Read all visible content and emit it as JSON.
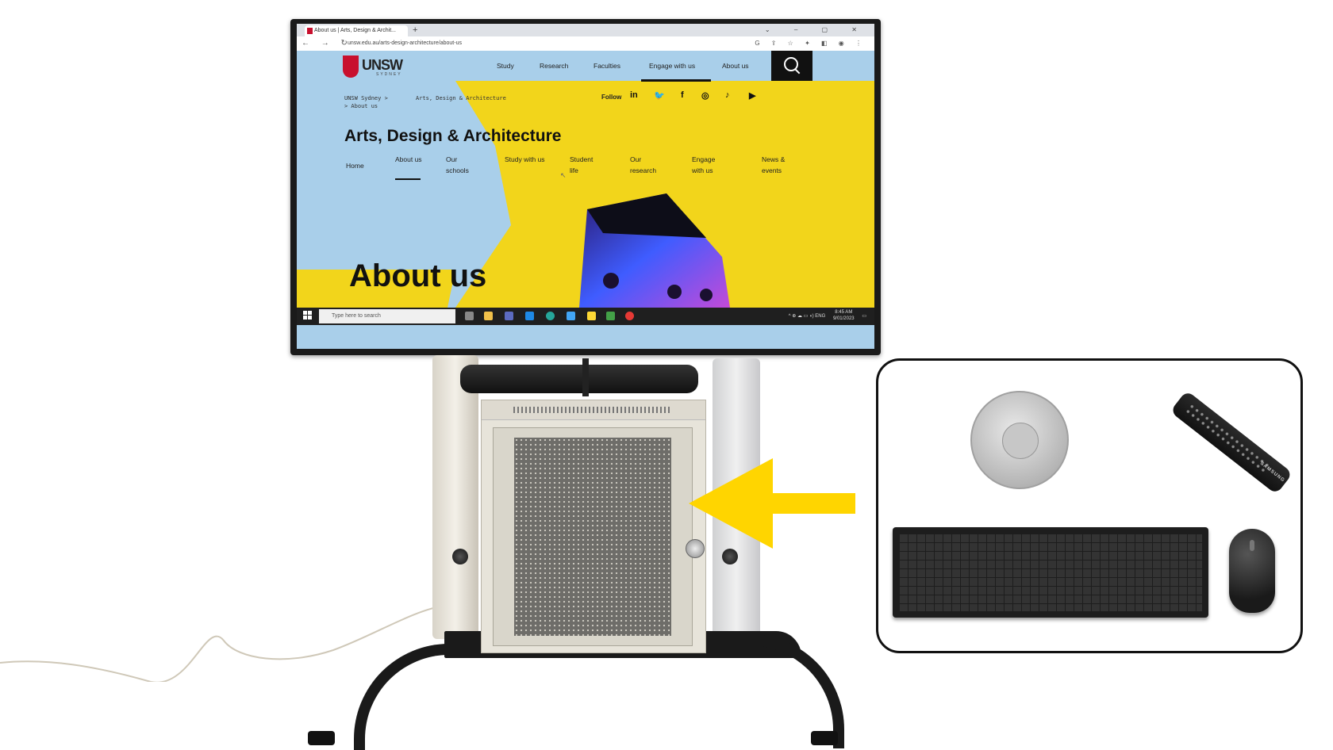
{
  "browser": {
    "tab_title": "About us | Arts, Design & Archit...",
    "new_tab": "+",
    "window_controls": "⌄ – ▢ ✕",
    "nav_buttons": "← → ↻",
    "url": "unsw.edu.au/arts-design-architecture/about-us",
    "extension_icons": "G ⇪ ☆ ✦ ◧ ◉ ⋮"
  },
  "site": {
    "logo_text": "UNSW",
    "logo_sub": "SYDNEY",
    "top_nav": [
      "Study",
      "Research",
      "Faculties",
      "Engage with us",
      "About us"
    ],
    "breadcrumb": [
      "UNSW Sydney  >",
      "Arts, Design & Architecture",
      ">   About us"
    ],
    "follow_label": "Follow",
    "social": [
      "in",
      "🐦",
      "f",
      "◎",
      "♪",
      "▶"
    ],
    "faculty_title": "Arts, Design & Architecture",
    "sub_nav": [
      "Home",
      "About us",
      "Our schools",
      "Study with us",
      "Student life",
      "Our research",
      "Engage with us",
      "News & events"
    ],
    "page_heading": "About us"
  },
  "taskbar": {
    "search_placeholder": "Type here to search",
    "tray": "^ ⊕ ☁ ▭ ◖) ENG",
    "time": "8:45 AM",
    "date": "9/01/2023"
  },
  "inset": {
    "remote_brand": "SAMSUNG"
  },
  "colors": {
    "unsw_yellow": "#f2d51b",
    "unsw_red": "#c8102e",
    "arrow_yellow": "#ffd500",
    "sky_blue": "#a9cfea"
  }
}
